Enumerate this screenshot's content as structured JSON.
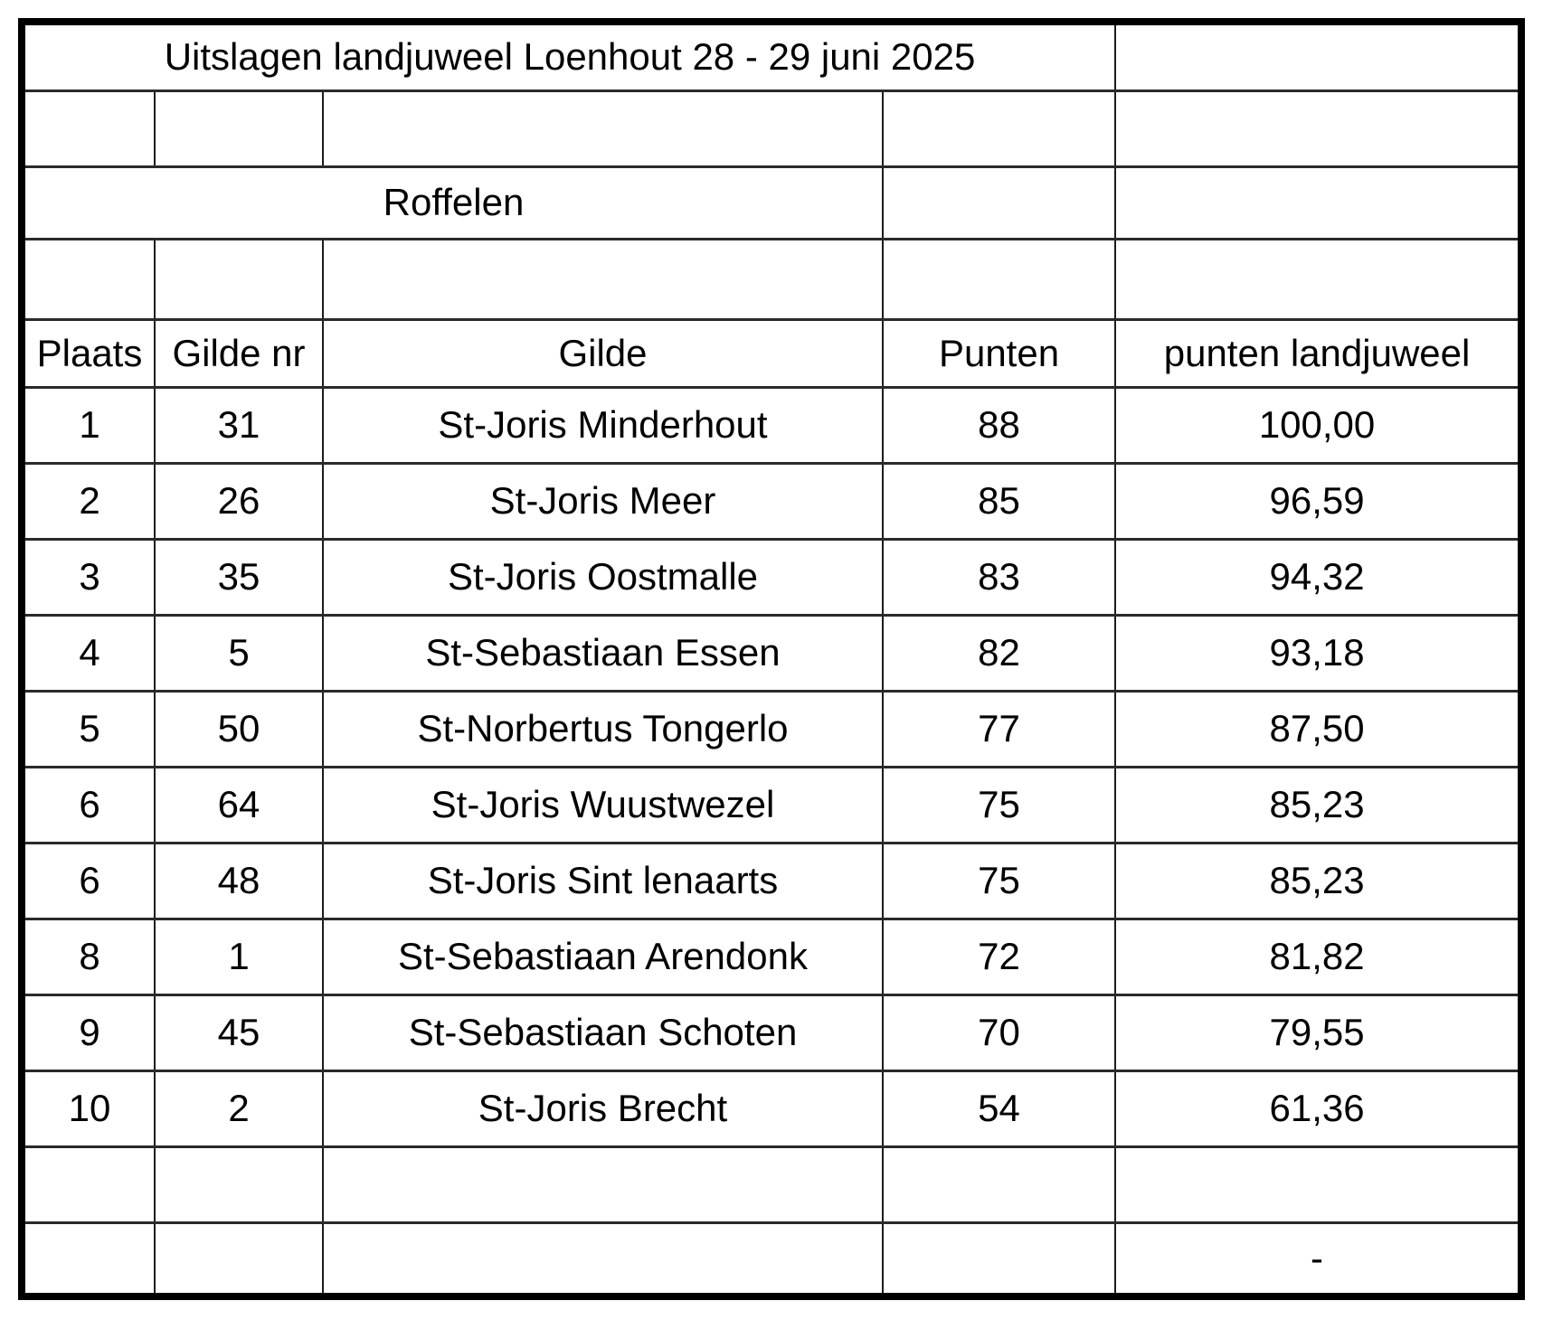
{
  "table": {
    "title": "Uitslagen landjuweel Loenhout 28 - 29 juni 2025",
    "section_label": "Roffelen",
    "headers": {
      "plaats": "Plaats",
      "gilde_nr": "Gilde nr",
      "gilde": "Gilde",
      "punten": "Punten",
      "punten_landjuweel": "punten landjuweel"
    },
    "rows": [
      {
        "plaats": "1",
        "gilde_nr": "31",
        "gilde": "St-Joris Minderhout",
        "punten": "88",
        "punten_landjuweel": "100,00"
      },
      {
        "plaats": "2",
        "gilde_nr": "26",
        "gilde": "St-Joris Meer",
        "punten": "85",
        "punten_landjuweel": "96,59"
      },
      {
        "plaats": "3",
        "gilde_nr": "35",
        "gilde": "St-Joris Oostmalle",
        "punten": "83",
        "punten_landjuweel": "94,32"
      },
      {
        "plaats": "4",
        "gilde_nr": "5",
        "gilde": "St-Sebastiaan Essen",
        "punten": "82",
        "punten_landjuweel": "93,18"
      },
      {
        "plaats": "5",
        "gilde_nr": "50",
        "gilde": "St-Norbertus Tongerlo",
        "punten": "77",
        "punten_landjuweel": "87,50"
      },
      {
        "plaats": "6",
        "gilde_nr": "64",
        "gilde": "St-Joris Wuustwezel",
        "punten": "75",
        "punten_landjuweel": "85,23"
      },
      {
        "plaats": "6",
        "gilde_nr": "48",
        "gilde": "St-Joris Sint lenaarts",
        "punten": "75",
        "punten_landjuweel": "85,23"
      },
      {
        "plaats": "8",
        "gilde_nr": "1",
        "gilde": "St-Sebastiaan Arendonk",
        "punten": "72",
        "punten_landjuweel": "81,82"
      },
      {
        "plaats": "9",
        "gilde_nr": "45",
        "gilde": "St-Sebastiaan Schoten",
        "punten": "70",
        "punten_landjuweel": "79,55"
      },
      {
        "plaats": "10",
        "gilde_nr": "2",
        "gilde": "St-Joris Brecht",
        "punten": "54",
        "punten_landjuweel": "61,36"
      }
    ],
    "footer": {
      "placeholder_value": "-"
    }
  }
}
